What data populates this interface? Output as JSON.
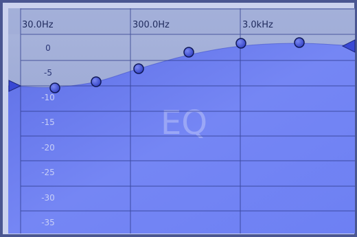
{
  "eq": {
    "watermark": "EQ",
    "frequency_labels": [
      "30.0Hz",
      "300.0Hz",
      "3.0kHz"
    ],
    "db_labels": [
      "0",
      "-5",
      "-10",
      "-15",
      "-20",
      "-25",
      "-30",
      "-35"
    ],
    "band_points_db": [
      -8.3,
      -6.3,
      -4.3,
      0.3,
      1.3,
      1.3
    ],
    "left_marker_db": -7.5,
    "right_marker_db": 1.0,
    "colors": {
      "border": "#3a4785",
      "header": "#9aa7d2",
      "fill_top": "#5f6fe0",
      "fill_bottom": "#6c7ef2",
      "grid": "#2d3a8a",
      "curve_edge": "#3b49c9",
      "handle_fill": "#3f4fd6",
      "handle_stroke": "#101a55",
      "marker": "#3948d4"
    }
  }
}
